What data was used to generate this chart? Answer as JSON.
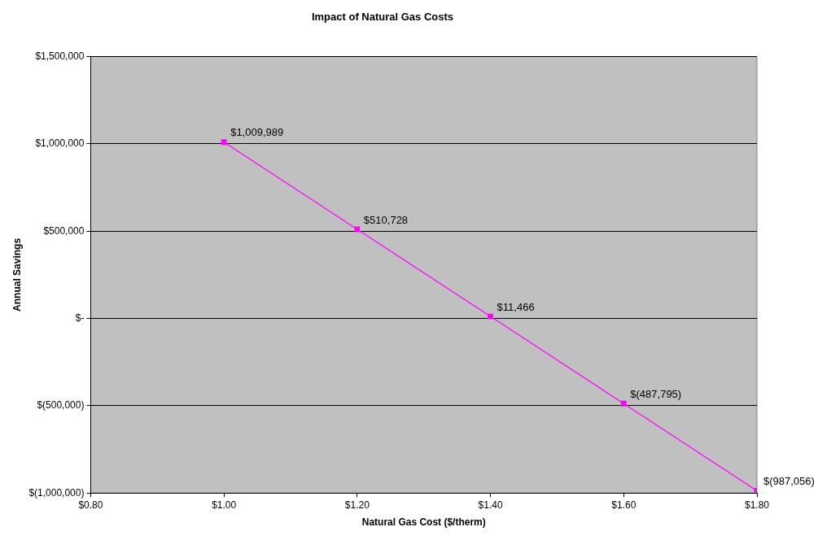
{
  "chart_data": {
    "type": "line",
    "title": "Impact of Natural Gas Costs",
    "xlabel": "Natural Gas Cost ($/therm)",
    "ylabel": "Annual Savings",
    "x": [
      1.0,
      1.2,
      1.4,
      1.6,
      1.8
    ],
    "values": [
      1009989,
      510728,
      11466,
      -487795,
      -987056
    ],
    "value_labels": [
      "$1,009,989",
      "$510,728",
      "$11,466",
      "$(487,795)",
      "$(987,056)"
    ],
    "color": "#ff00ff",
    "marker": "square",
    "line_style": "solid",
    "grid": "y",
    "legend": false,
    "xlim": [
      0.8,
      1.8
    ],
    "xticks": [
      {
        "value": 0.8,
        "label": "$0.80"
      },
      {
        "value": 1.0,
        "label": "$1.00"
      },
      {
        "value": 1.2,
        "label": "$1.20"
      },
      {
        "value": 1.4,
        "label": "$1.40"
      },
      {
        "value": 1.6,
        "label": "$1.60"
      },
      {
        "value": 1.8,
        "label": "$1.80"
      }
    ],
    "ylim": [
      -1000000,
      1500000
    ],
    "yticks": [
      {
        "value": -1000000,
        "label": "$(1,000,000)"
      },
      {
        "value": -500000,
        "label": "$(500,000)"
      },
      {
        "value": 0,
        "label": "$-"
      },
      {
        "value": 500000,
        "label": "$500,000"
      },
      {
        "value": 1000000,
        "label": "$1,000,000"
      },
      {
        "value": 1500000,
        "label": "$1,500,000"
      }
    ]
  }
}
